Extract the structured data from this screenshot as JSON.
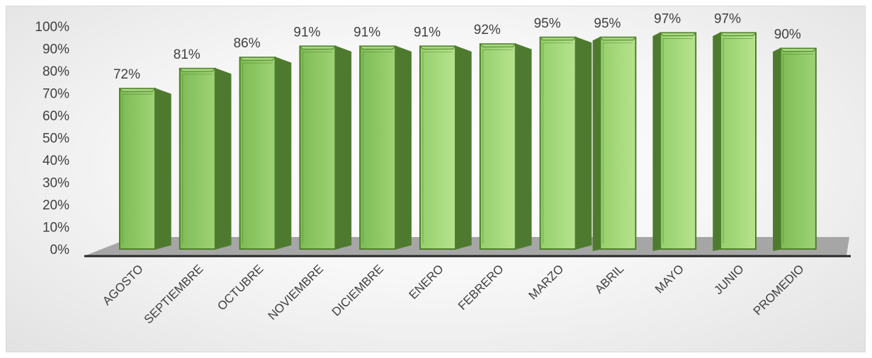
{
  "chart_data": {
    "type": "bar",
    "categories": [
      "AGOSTO",
      "SEPTIEMBRE",
      "OCTUBRE",
      "NOVIEMBRE",
      "DICIEMBRE",
      "ENERO",
      "FEBRERO",
      "MARZO",
      "ABRIL",
      "MAYO",
      "JUNIO",
      "PROMEDIO"
    ],
    "values": [
      72,
      81,
      86,
      91,
      91,
      91,
      92,
      95,
      95,
      97,
      97,
      90
    ],
    "data_labels": [
      "72%",
      "81%",
      "86%",
      "91%",
      "91%",
      "91%",
      "92%",
      "95%",
      "95%",
      "97%",
      "97%",
      "90%"
    ],
    "y_ticks": [
      "0%",
      "10%",
      "20%",
      "30%",
      "40%",
      "50%",
      "60%",
      "70%",
      "80%",
      "90%",
      "100%"
    ],
    "ylim": [
      0,
      100
    ],
    "title": "",
    "xlabel": "",
    "ylabel": "",
    "legend": "none",
    "grid": false,
    "style": "3d-column",
    "colors": {
      "bar_front": "#8fcb66",
      "bar_front_light": "#b0df88",
      "bar_side": "#4e7a30",
      "bar_top": "#a6d97e",
      "bar_edge": "#4f7f2c",
      "floor": "#a6a6a6",
      "axis_line": "#262626"
    }
  }
}
